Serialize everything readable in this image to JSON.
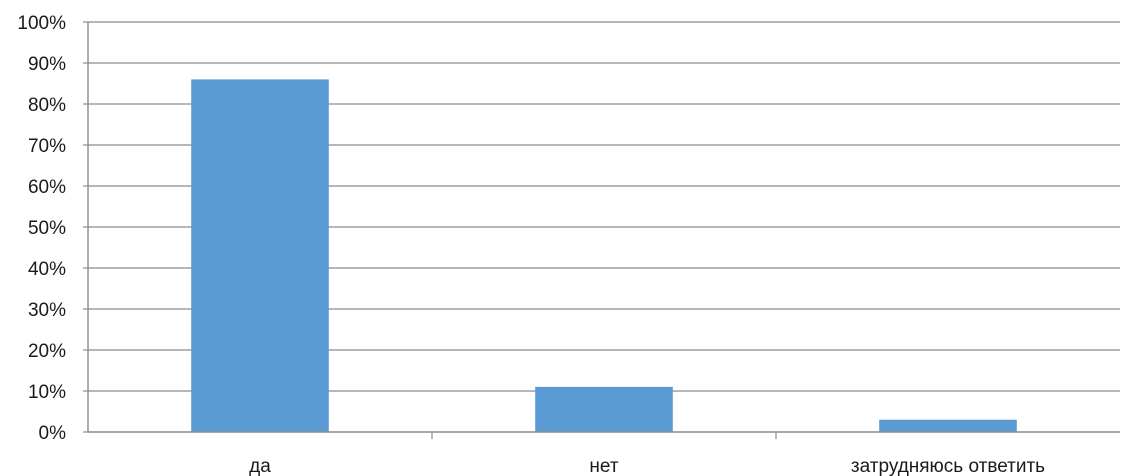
{
  "chart_data": {
    "type": "bar",
    "title": "",
    "xlabel": "",
    "ylabel": "",
    "categories": [
      "да",
      "нет",
      "затрудняюсь ответить"
    ],
    "values": [
      86,
      11,
      3
    ],
    "ylim": [
      0,
      100
    ],
    "yticks": [
      0,
      10,
      20,
      30,
      40,
      50,
      60,
      70,
      80,
      90,
      100
    ],
    "ytick_labels": [
      "0%",
      "10%",
      "20%",
      "30%",
      "40%",
      "50%",
      "60%",
      "70%",
      "80%",
      "90%",
      "100%"
    ],
    "grid": true,
    "legend": "none",
    "bar_color": "#5b9bd5",
    "grid_color": "#8c8c8c"
  }
}
